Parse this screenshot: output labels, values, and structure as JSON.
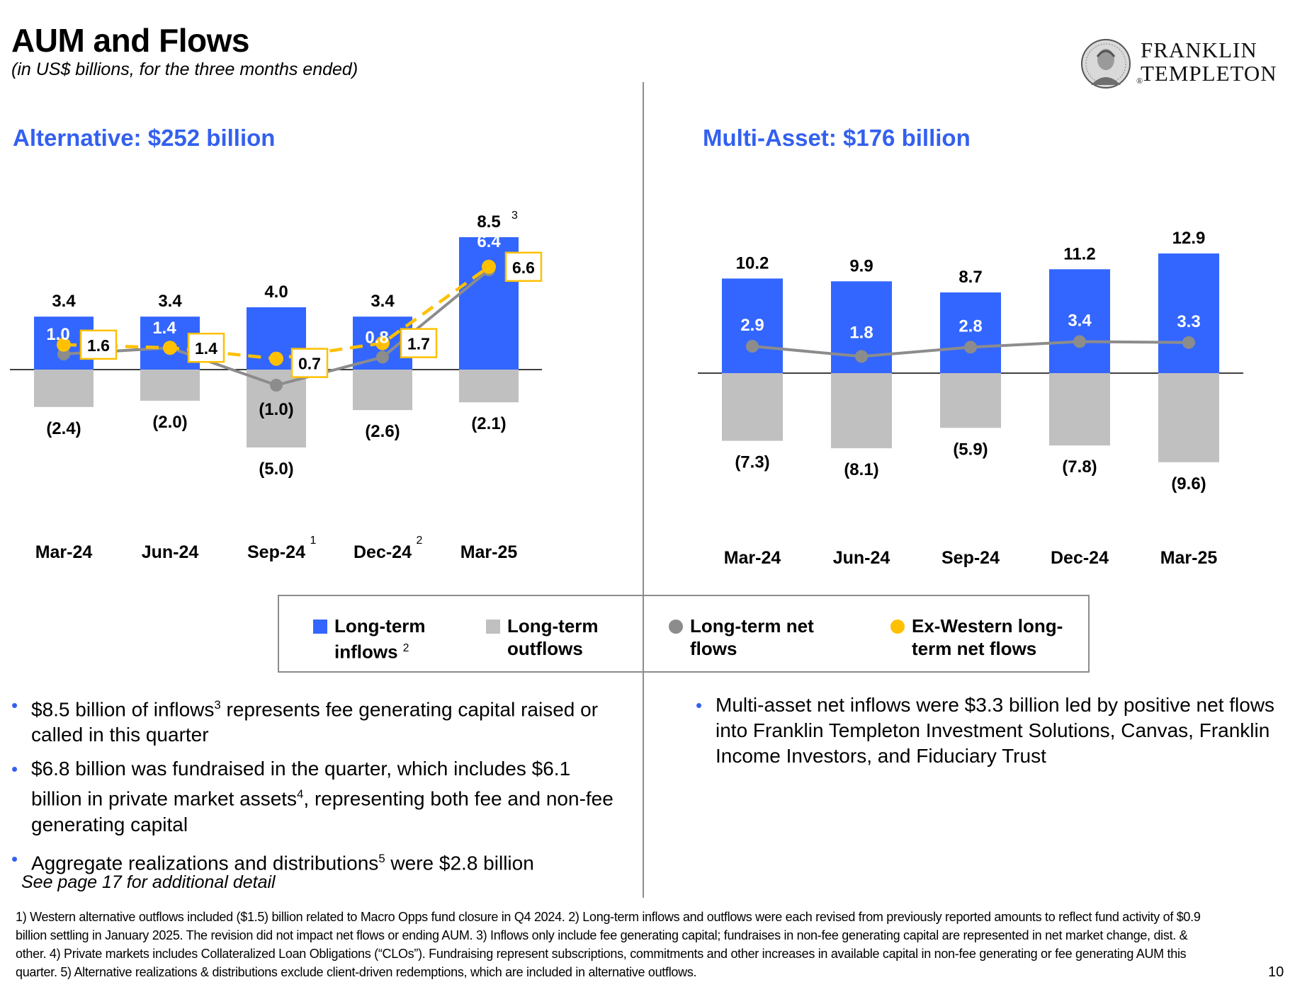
{
  "header": {
    "title": "AUM and Flows",
    "subtitle": "(in US$ billions, for the three months ended)",
    "logo_line1": "FRANKLIN",
    "logo_line2": "TEMPLETON"
  },
  "colors": {
    "inflows": "#3366ff",
    "outflows": "#c0c0c0",
    "net_flows": "#8c8c8c",
    "ex_western": "#ffc000",
    "title_blue": "#3360ef"
  },
  "chart_data": [
    {
      "type": "bar",
      "title": "Alternative: $252 billion",
      "categories": [
        "Mar-24",
        "Jun-24",
        "Sep-24",
        "Dec-24",
        "Mar-25"
      ],
      "category_footnotes": [
        "",
        "",
        "1",
        "2",
        ""
      ],
      "series": [
        {
          "name": "Long-term inflows",
          "values": [
            3.4,
            3.4,
            4.0,
            3.4,
            8.5
          ],
          "labels": [
            "3.4",
            "3.4",
            "4.0",
            "3.4",
            "8.5"
          ]
        },
        {
          "name": "Long-term outflows",
          "values": [
            -2.4,
            -2.0,
            -5.0,
            -2.6,
            -2.1
          ],
          "labels": [
            "(2.4)",
            "(2.0)",
            "(5.0)",
            "(2.6)",
            "(2.1)"
          ]
        },
        {
          "name": "Long-term net flows",
          "values": [
            1.0,
            1.4,
            -1.0,
            0.8,
            6.4
          ],
          "labels": [
            "1.0",
            "1.4",
            "(1.0)",
            "0.8",
            "6.4"
          ]
        },
        {
          "name": "Ex-Western long-term net flows",
          "values": [
            1.6,
            1.4,
            0.7,
            1.7,
            6.6
          ],
          "labels": [
            "1.6",
            "1.4",
            "0.7",
            "1.7",
            "6.6"
          ]
        }
      ],
      "annotations": [
        {
          "category": "Mar-25",
          "text": "3"
        }
      ],
      "ylim": [
        -5.5,
        9.5
      ]
    },
    {
      "type": "bar",
      "title": "Multi-Asset: $176 billion",
      "categories": [
        "Mar-24",
        "Jun-24",
        "Sep-24",
        "Dec-24",
        "Mar-25"
      ],
      "category_footnotes": [
        "",
        "",
        "",
        "",
        ""
      ],
      "series": [
        {
          "name": "Long-term inflows",
          "values": [
            10.2,
            9.9,
            8.7,
            11.2,
            12.9
          ],
          "labels": [
            "10.2",
            "9.9",
            "8.7",
            "11.2",
            "12.9"
          ]
        },
        {
          "name": "Long-term outflows",
          "values": [
            -7.3,
            -8.1,
            -5.9,
            -7.8,
            -9.6
          ],
          "labels": [
            "(7.3)",
            "(8.1)",
            "(5.9)",
            "(7.8)",
            "(9.6)"
          ]
        },
        {
          "name": "Long-term net flows",
          "values": [
            2.9,
            1.8,
            2.8,
            3.4,
            3.3
          ],
          "labels": [
            "2.9",
            "1.8",
            "2.8",
            "3.4",
            "3.3"
          ]
        }
      ],
      "ylim": [
        -10.5,
        14.5
      ]
    }
  ],
  "legend": {
    "inflows_line1": "Long-term",
    "inflows_line2": "inflows",
    "inflows_sup": "2",
    "outflows_line1": "Long-term",
    "outflows_line2": "outflows",
    "net_line1": "Long-term net",
    "net_line2": "flows",
    "exw_line1": "Ex-Western long-",
    "exw_line2": "term net flows"
  },
  "bullets_left": {
    "b1_a": "$8.5 billion of inflows",
    "b1_sup": "3",
    "b1_b": " represents fee generating capital raised or called in this quarter",
    "b2_a": "$6.8 billion was fundraised in the quarter, which includes $6.1 billion in private market assets",
    "b2_sup": "4",
    "b2_b": ", representing both fee and non-fee generating capital",
    "b3_a": "Aggregate realizations and distributions",
    "b3_sup": "5",
    "b3_b": " were $2.8 billion"
  },
  "bullets_right": {
    "b1": "Multi-asset net inflows were $3.3 billion led by positive net flows into Franklin Templeton Investment Solutions, Canvas, Franklin Income Investors, and Fiduciary Trust"
  },
  "note": "See page 17 for additional detail",
  "footnotes": "1) Western alternative outflows included ($1.5) billion related to Macro Opps fund closure in Q4 2024. 2) Long-term inflows and outflows were each revised from previously reported amounts to reflect fund activity of $0.9 billion settling in January 2025. The revision did not impact net flows or ending AUM. 3) Inflows only include fee generating capital; fundraises in non-fee generating capital are represented in net market change, dist. & other. 4) Private markets includes Collateralized Loan Obligations (“CLOs”). Fundraising represent subscriptions, commitments and other increases in available capital in non-fee generating or fee generating AUM this quarter. 5) Alternative realizations & distributions exclude client-driven redemptions, which are included in alternative outflows.",
  "page_number": "10"
}
